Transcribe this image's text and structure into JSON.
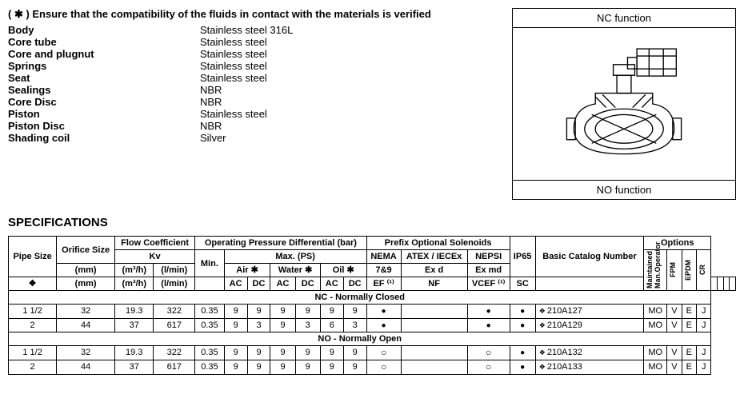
{
  "compat_note": "( ✱ )  Ensure that the compatibility of the fluids in contact with the materials is verified",
  "materials": [
    {
      "label": "Body",
      "value": "Stainless steel 316L"
    },
    {
      "label": "Core tube",
      "value": "Stainless steel"
    },
    {
      "label": "Core and plugnut",
      "value": "Stainless steel"
    },
    {
      "label": "Springs",
      "value": "Stainless steel"
    },
    {
      "label": "Seat",
      "value": "Stainless steel"
    },
    {
      "label": "Sealings",
      "value": "NBR"
    },
    {
      "label": "Core Disc",
      "value": "NBR"
    },
    {
      "label": "Piston",
      "value": "Stainless steel"
    },
    {
      "label": "Piston Disc",
      "value": "NBR"
    },
    {
      "label": "Shading coil",
      "value": "Silver"
    }
  ],
  "diagram": {
    "nc_label": "NC function",
    "no_label": "NO function"
  },
  "specs_heading": "SPECIFICATIONS",
  "headers": {
    "pipe_size": "Pipe Size",
    "orifice_size": "Orifice Size",
    "flow_coeff": "Flow Coefficient",
    "kv": "Kv",
    "opd": "Operating Pressure Differential (bar)",
    "min": "Min.",
    "max_ps": "Max. (PS)",
    "air": "Air ✱",
    "water": "Water ✱",
    "oil": "Oil ✱",
    "prefix": "Prefix Optional Solenoids",
    "nema": "NEMA",
    "atex": "ATEX / IECEx",
    "nepsi": "NEPSI",
    "seven89": "7&9",
    "exd": "Ex d",
    "exmd": "Ex md",
    "ip65": "IP65",
    "basic_catalog": "Basic Catalog Number",
    "options": "Options",
    "mm": "(mm)",
    "m3h": "(m³/h)",
    "lmin": "(l/min)",
    "ac": "AC",
    "dc": "DC",
    "ef": "EF ⁽¹⁾",
    "nf": "NF",
    "vcef": "VCEF ⁽¹⁾",
    "sc": "SC",
    "opt_maintained": "Maintained Man.Operator",
    "opt_fpm": "FPM",
    "opt_epdm": "EPDM",
    "opt_cr": "CR",
    "diamond": "❖"
  },
  "sections": [
    {
      "title": "NC - Normally Closed",
      "rows": [
        {
          "pipe": "1 1/2",
          "mm": "32",
          "m3h": "19.3",
          "lmin": "322",
          "min": "0.35",
          "air_ac": "9",
          "air_dc": "9",
          "water_ac": "9",
          "water_dc": "9",
          "oil_ac": "9",
          "oil_dc": "9",
          "ef": "dot",
          "nf": "",
          "vcef": "dot",
          "sc": "dot",
          "catalog": "210A127",
          "mo": "MO",
          "fpm": "V",
          "epdm": "E",
          "cr": "J"
        },
        {
          "pipe": "2",
          "mm": "44",
          "m3h": "37",
          "lmin": "617",
          "min": "0.35",
          "air_ac": "9",
          "air_dc": "3",
          "water_ac": "9",
          "water_dc": "3",
          "oil_ac": "6",
          "oil_dc": "3",
          "ef": "dot",
          "nf": "",
          "vcef": "dot",
          "sc": "dot",
          "catalog": "210A129",
          "mo": "MO",
          "fpm": "V",
          "epdm": "E",
          "cr": "J"
        }
      ]
    },
    {
      "title": "NO - Normally Open",
      "rows": [
        {
          "pipe": "1 1/2",
          "mm": "32",
          "m3h": "19.3",
          "lmin": "322",
          "min": "0.35",
          "air_ac": "9",
          "air_dc": "9",
          "water_ac": "9",
          "water_dc": "9",
          "oil_ac": "9",
          "oil_dc": "9",
          "ef": "odot",
          "nf": "",
          "vcef": "odot",
          "sc": "dot",
          "catalog": "210A132",
          "mo": "MO",
          "fpm": "V",
          "epdm": "E",
          "cr": "J"
        },
        {
          "pipe": "2",
          "mm": "44",
          "m3h": "37",
          "lmin": "617",
          "min": "0.35",
          "air_ac": "9",
          "air_dc": "9",
          "water_ac": "9",
          "water_dc": "9",
          "oil_ac": "9",
          "oil_dc": "9",
          "ef": "odot",
          "nf": "",
          "vcef": "odot",
          "sc": "dot",
          "catalog": "210A133",
          "mo": "MO",
          "fpm": "V",
          "epdm": "E",
          "cr": "J"
        }
      ]
    }
  ]
}
